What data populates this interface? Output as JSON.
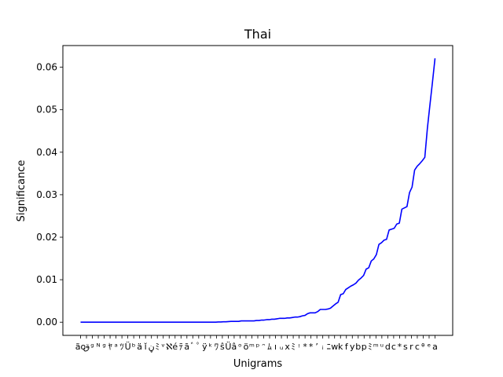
{
  "chart_data": {
    "type": "line",
    "title": "Thai",
    "xlabel": "Unigrams",
    "ylabel": "Significance",
    "line_color": "#0000ff",
    "ylim": [
      -0.0031,
      0.0651
    ],
    "yticks": [
      "0.00",
      "0.01",
      "0.02",
      "0.03",
      "0.04",
      "0.05",
      "0.06"
    ],
    "x_tick_labels_note": "dense, overlapping and mostly unreadable category labels (Thai script rendered as boxes)",
    "x_tick_labels_visible": [
      "ão",
      "ق",
      "ᶢ",
      "ᴺ",
      "ᵍ",
      "ﾔ",
      "ᵃ",
      "ﾂ",
      "Ü",
      "ᵇ",
      "ä",
      "ǐ",
      "ڼ",
      "ﾐ",
      "ᵛ",
      "ℵ",
      "é",
      "ﾃ",
      "ā",
      "ﾞ",
      "ﾟ",
      "ÿ",
      "ᵏ",
      "ﾜ",
      "ŝ",
      "Ü",
      "â",
      "ᵒ",
      "ö",
      "ᵐ",
      "ᵖ",
      "ᵔ",
      "ﾑ",
      "ı",
      "ᵤ",
      "x",
      "ﾐ",
      "ᵎ",
      "*",
      "*",
      "’",
      "ᵢ",
      "ﾆ",
      "w",
      "k",
      "f",
      "y",
      "b",
      "p",
      "ﾐ",
      "ᵐ",
      "ᵘ",
      "d",
      "c",
      "*",
      "s",
      "r",
      "c",
      "ᶿ",
      "ᵉ",
      "a"
    ],
    "values": [
      0.0,
      0.0,
      0.0,
      0.0,
      0.0,
      0.0,
      0.0,
      0.0,
      0.0,
      0.0,
      0.0,
      0.0,
      0.0,
      0.0,
      0.0,
      0.0,
      0.0,
      0.0,
      0.0,
      0.0,
      0.0,
      0.0,
      0.0,
      0.0,
      0.0,
      0.0,
      0.0,
      0.0,
      0.0,
      0.0,
      0.0,
      0.0,
      0.0,
      0.0,
      0.0,
      0.0,
      0.0,
      0.0,
      0.0,
      0.0,
      0.0,
      0.0,
      0.0,
      0.0,
      0.0,
      0.0,
      0.0,
      0.0,
      0.0,
      0.0,
      0.0,
      0.0,
      0.0,
      0.0,
      5e-05,
      5e-05,
      0.0001,
      0.0001,
      0.00015,
      0.0002,
      0.0002,
      0.0002,
      0.0002,
      0.0003,
      0.0003,
      0.0003,
      0.0003,
      0.0003,
      0.0003,
      0.0004,
      0.0004,
      0.0005,
      0.0005,
      0.0006,
      0.0006,
      0.0007,
      0.0007,
      0.0008,
      0.0009,
      0.0009,
      0.0009,
      0.001,
      0.001,
      0.0011,
      0.0012,
      0.0012,
      0.0013,
      0.0015,
      0.0016,
      0.002,
      0.0022,
      0.0022,
      0.0022,
      0.0025,
      0.003,
      0.003,
      0.003,
      0.0031,
      0.0033,
      0.0038,
      0.0043,
      0.0047,
      0.0065,
      0.0067,
      0.0077,
      0.0081,
      0.0085,
      0.0088,
      0.0092,
      0.0099,
      0.0104,
      0.011,
      0.0125,
      0.0128,
      0.0144,
      0.0149,
      0.0159,
      0.0183,
      0.0187,
      0.0193,
      0.0195,
      0.0217,
      0.0219,
      0.0221,
      0.0231,
      0.0233,
      0.0266,
      0.0269,
      0.0272,
      0.0305,
      0.0318,
      0.0358,
      0.0367,
      0.0373,
      0.038,
      0.0388,
      0.0456,
      0.0511,
      0.0565,
      0.0621
    ],
    "grid": false,
    "legend": false
  }
}
